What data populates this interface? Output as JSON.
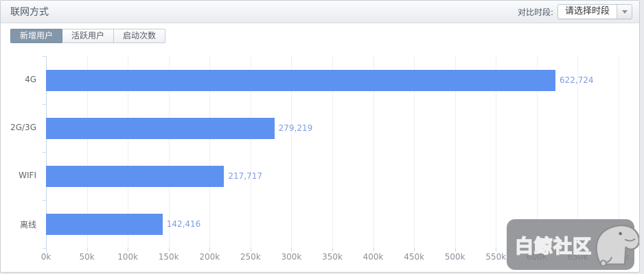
{
  "header": {
    "title": "联网方式",
    "compare_label": "对比时段:",
    "compare_value": "请选择时段"
  },
  "tabs": {
    "items": [
      "新增用户",
      "活跃用户",
      "启动次数"
    ],
    "active_index": 0
  },
  "chart_data": {
    "type": "bar",
    "orientation": "horizontal",
    "title": "联网方式",
    "categories": [
      "4G",
      "2G/3G",
      "WIFI",
      "离线"
    ],
    "values": [
      622724,
      279219,
      217717,
      142416
    ],
    "value_labels": [
      "622,724",
      "279,219",
      "217,717",
      "142,416"
    ],
    "xlim": [
      0,
      700000
    ],
    "x_tick_labels": [
      "0k",
      "50k",
      "100k",
      "150k",
      "200k",
      "250k",
      "300k",
      "350k",
      "400k",
      "450k",
      "500k",
      "550k",
      "600k",
      "650k",
      "700k"
    ],
    "grid": true,
    "legend": "none",
    "bar_color": "#5e92f0",
    "value_label_color": "#7d9ce2"
  },
  "watermark": {
    "text": "白鲸社区",
    "icon": "whale-mascot"
  }
}
